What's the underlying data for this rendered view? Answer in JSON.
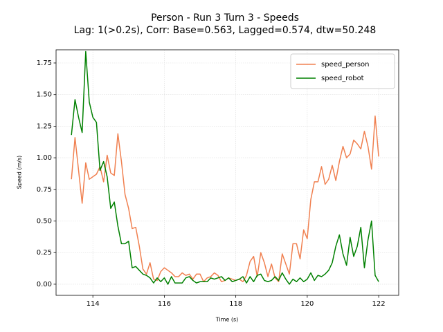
{
  "chart_data": {
    "type": "line",
    "title": "Person - Run 3 Turn 3 - Speeds",
    "subtitle": "Lag: 1(>0.2s), Corr: Base=0.563, Lagged=0.574, dtw=50.248",
    "x_label": "Time (s)",
    "y_label": "Speed (m/s)",
    "x": [
      113.4,
      113.5,
      113.6,
      113.7,
      113.8,
      113.9,
      114.0,
      114.1,
      114.2,
      114.3,
      114.4,
      114.5,
      114.6,
      114.7,
      114.8,
      114.9,
      115.0,
      115.1,
      115.2,
      115.3,
      115.4,
      115.5,
      115.6,
      115.7,
      115.8,
      115.9,
      116.0,
      116.1,
      116.2,
      116.3,
      116.4,
      116.5,
      116.6,
      116.7,
      116.8,
      116.9,
      117.0,
      117.1,
      117.2,
      117.3,
      117.4,
      117.5,
      117.6,
      117.7,
      117.8,
      117.9,
      118.0,
      118.1,
      118.2,
      118.3,
      118.4,
      118.5,
      118.6,
      118.7,
      118.8,
      118.9,
      119.0,
      119.1,
      119.2,
      119.3,
      119.4,
      119.5,
      119.6,
      119.7,
      119.8,
      119.9,
      120.0,
      120.1,
      120.2,
      120.3,
      120.4,
      120.5,
      120.6,
      120.7,
      120.8,
      120.9,
      121.0,
      121.1,
      121.2,
      121.3,
      121.4,
      121.5,
      121.6,
      121.7,
      121.8,
      121.9,
      122.0
    ],
    "series": [
      {
        "name": "speed_person",
        "color": "#f08050",
        "values": [
          0.83,
          1.16,
          0.9,
          0.64,
          0.96,
          0.83,
          0.85,
          0.87,
          0.93,
          0.81,
          1.02,
          0.88,
          0.86,
          1.19,
          0.97,
          0.71,
          0.6,
          0.44,
          0.45,
          0.3,
          0.12,
          0.08,
          0.17,
          0.04,
          0.03,
          0.1,
          0.13,
          0.11,
          0.09,
          0.06,
          0.06,
          0.09,
          0.07,
          0.08,
          0.04,
          0.08,
          0.08,
          0.02,
          0.05,
          0.06,
          0.09,
          0.07,
          0.02,
          0.03,
          0.05,
          0.04,
          0.03,
          0.04,
          0.02,
          0.07,
          0.18,
          0.22,
          0.06,
          0.25,
          0.17,
          0.06,
          0.16,
          0.05,
          0.02,
          0.24,
          0.16,
          0.08,
          0.32,
          0.32,
          0.2,
          0.43,
          0.36,
          0.67,
          0.81,
          0.81,
          0.93,
          0.79,
          0.83,
          0.94,
          0.82,
          0.97,
          1.09,
          1.0,
          1.03,
          1.14,
          1.11,
          1.07,
          1.21,
          1.09,
          0.91,
          1.33,
          1.01
        ]
      },
      {
        "name": "speed_robot",
        "color": "#008000",
        "values": [
          1.18,
          1.46,
          1.32,
          1.2,
          1.84,
          1.44,
          1.32,
          1.28,
          0.9,
          0.97,
          0.85,
          0.6,
          0.65,
          0.46,
          0.32,
          0.32,
          0.34,
          0.13,
          0.14,
          0.11,
          0.08,
          0.07,
          0.05,
          0.01,
          0.05,
          0.02,
          0.05,
          0.0,
          0.06,
          0.01,
          0.01,
          0.01,
          0.05,
          0.06,
          0.03,
          0.01,
          0.02,
          0.02,
          0.02,
          0.05,
          0.04,
          0.05,
          0.06,
          0.03,
          0.05,
          0.02,
          0.03,
          0.04,
          0.06,
          0.01,
          0.06,
          0.02,
          0.07,
          0.08,
          0.03,
          0.02,
          0.03,
          0.06,
          0.03,
          0.09,
          0.04,
          0.0,
          0.04,
          0.02,
          0.05,
          0.02,
          0.04,
          0.09,
          0.03,
          0.07,
          0.06,
          0.08,
          0.11,
          0.17,
          0.3,
          0.39,
          0.24,
          0.15,
          0.37,
          0.22,
          0.3,
          0.45,
          0.13,
          0.35,
          0.5,
          0.07,
          0.02
        ]
      }
    ],
    "xlim": [
      112.97,
      122.56
    ],
    "ylim": [
      -0.088,
      1.854
    ],
    "xticks": [
      114,
      116,
      118,
      120,
      122
    ],
    "yticks": [
      {
        "value": 0,
        "label": "0.00"
      },
      {
        "value": 0.25,
        "label": "0.25"
      },
      {
        "value": 0.5,
        "label": "0.50"
      },
      {
        "value": 0.75,
        "label": "0.75"
      },
      {
        "value": 1,
        "label": "1.00"
      },
      {
        "value": 1.25,
        "label": "1.25"
      },
      {
        "value": 1.5,
        "label": "1.50"
      },
      {
        "value": 1.75,
        "label": "1.75"
      }
    ],
    "grid": true,
    "legend": "upper right"
  }
}
